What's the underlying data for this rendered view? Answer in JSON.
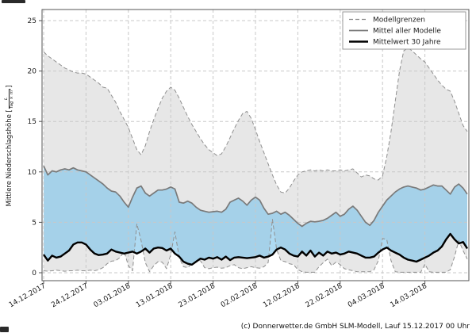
{
  "footer": "(c) Donnerwetter.de GmbH SLM-Modell, Lauf 15.12.2017 00 Uhr",
  "y_axis": {
    "label_prefix": "Mittlere Niederschlagshöhe [",
    "fraction_numerator": "L",
    "fraction_denominator": "Tag × m²",
    "label_suffix": "]",
    "ticks": [
      0,
      5,
      10,
      15,
      20,
      25
    ]
  },
  "x_axis": {
    "tick_labels": [
      "14.12.2017",
      "24.12.2017",
      "03.01.2018",
      "13.01.2018",
      "23.01.2018",
      "02.02.2018",
      "12.02.2018",
      "22.02.2018",
      "04.03.2018",
      "14.03.2018"
    ]
  },
  "legend": {
    "items": [
      {
        "label": "Modellgrenzen",
        "style": "dashed-gray"
      },
      {
        "label": "Mittel aller Modelle",
        "style": "solid-gray"
      },
      {
        "label": "Mittelwert 30 Jahre",
        "style": "solid-black"
      }
    ]
  },
  "colors": {
    "band_gray": "#e7e7e7",
    "band_blue": "rgba(125,196,234,0.62)",
    "bound_line": "#8f8f8f",
    "mean_models_line": "#7a7a7a",
    "mean_30y_line": "#000000",
    "grid": "#c8c8c8",
    "spine": "#555555"
  },
  "chart_data": {
    "type": "line",
    "title": "",
    "xlabel": "",
    "ylabel": "Mittlere Niederschlagshöhe [L/(Tag × m²)]",
    "x_unit": "days since 14.12.2017",
    "x_range_days": [
      0,
      100
    ],
    "x_tick_days": [
      0,
      10,
      20,
      30,
      40,
      50,
      60,
      70,
      80,
      90
    ],
    "ylim": [
      -0.8,
      26.1
    ],
    "grid": true,
    "legend_position": "top-right",
    "series": [
      {
        "name": "Modellgrenze oben (Modellgrenzen)",
        "values": [
          21.9,
          21.5,
          21.2,
          20.9,
          20.6,
          20.3,
          20.1,
          19.9,
          19.8,
          19.8,
          19.7,
          19.4,
          19.1,
          18.8,
          18.4,
          18.3,
          17.6,
          16.9,
          16.0,
          15.2,
          14.4,
          13.3,
          12.2,
          11.7,
          12.6,
          14.0,
          15.2,
          16.3,
          17.3,
          18.0,
          18.4,
          18.1,
          17.3,
          16.4,
          15.5,
          14.7,
          14.0,
          13.3,
          12.7,
          12.2,
          11.9,
          11.6,
          11.8,
          12.5,
          13.4,
          14.3,
          15.1,
          15.8,
          16.0,
          15.3,
          14.2,
          13.0,
          11.9,
          10.8,
          9.7,
          8.7,
          8.0,
          7.9,
          8.4,
          9.1,
          9.7,
          10.0,
          10.1,
          10.2,
          10.1,
          10.2,
          10.1,
          10.2,
          10.1,
          10.1,
          10.2,
          10.1,
          10.2,
          10.3,
          9.9,
          9.5,
          9.7,
          9.6,
          9.3,
          9.2,
          9.6,
          11.5,
          14.0,
          17.0,
          20.0,
          22.0,
          22.3,
          22.0,
          21.6,
          21.2,
          20.9,
          20.3,
          19.7,
          19.1,
          18.6,
          18.2,
          18.0,
          17.0,
          15.8,
          14.6,
          14.0
        ]
      },
      {
        "name": "Modellgrenze unten (Modellgrenzen)",
        "values": [
          0.2,
          0.15,
          0.2,
          0.25,
          0.2,
          0.15,
          0.2,
          0.2,
          0.25,
          0.2,
          0.2,
          0.25,
          0.2,
          0.3,
          0.5,
          0.9,
          1.15,
          1.2,
          1.5,
          2.1,
          0.7,
          0.2,
          4.85,
          3.2,
          1.0,
          0.1,
          0.7,
          1.1,
          1.05,
          0.4,
          1.8,
          4.05,
          1.5,
          0.6,
          0.5,
          0.9,
          1.1,
          1.2,
          0.5,
          0.4,
          0.5,
          0.55,
          0.45,
          0.5,
          0.7,
          0.8,
          0.5,
          0.4,
          0.5,
          0.6,
          0.5,
          0.45,
          0.6,
          1.0,
          5.3,
          2.3,
          1.2,
          1.1,
          0.9,
          0.8,
          0.3,
          0.1,
          0.05,
          0.05,
          0.05,
          0.6,
          1.0,
          1.35,
          0.7,
          1.05,
          0.8,
          0.4,
          0.3,
          0.2,
          0.1,
          0.1,
          0.1,
          0.1,
          0.3,
          1.2,
          3.4,
          3.3,
          1.2,
          0.1,
          0.05,
          0.05,
          0.05,
          0.05,
          0.05,
          0.05,
          0.85,
          0.1,
          0.05,
          0.05,
          0.05,
          0.05,
          0.3,
          1.6,
          3.2,
          2.2,
          1.35
        ]
      },
      {
        "name": "Mittel aller Modelle",
        "values": [
          10.6,
          9.7,
          10.1,
          10.0,
          10.2,
          10.3,
          10.2,
          10.4,
          10.2,
          10.1,
          10.0,
          9.7,
          9.4,
          9.1,
          8.8,
          8.4,
          8.1,
          8.0,
          7.6,
          7.0,
          6.5,
          7.5,
          8.4,
          8.6,
          7.9,
          7.6,
          7.9,
          8.2,
          8.2,
          8.3,
          8.5,
          8.3,
          7.0,
          6.9,
          7.1,
          6.9,
          6.5,
          6.2,
          6.1,
          6.0,
          6.05,
          6.1,
          6.0,
          6.3,
          7.0,
          7.2,
          7.4,
          7.1,
          6.7,
          7.2,
          7.5,
          7.2,
          6.4,
          5.8,
          5.9,
          6.1,
          5.8,
          6.0,
          5.7,
          5.3,
          4.9,
          4.6,
          4.9,
          5.1,
          5.05,
          5.1,
          5.2,
          5.4,
          5.7,
          6.0,
          5.6,
          5.8,
          6.3,
          6.6,
          6.2,
          5.6,
          5.0,
          4.7,
          5.2,
          6.0,
          6.6,
          7.2,
          7.6,
          8.0,
          8.3,
          8.5,
          8.6,
          8.5,
          8.4,
          8.2,
          8.3,
          8.5,
          8.7,
          8.6,
          8.6,
          8.2,
          7.8,
          8.5,
          8.8,
          8.4,
          7.8
        ]
      },
      {
        "name": "Mittelwert 30 Jahre",
        "values": [
          1.8,
          1.2,
          1.7,
          1.5,
          1.6,
          1.9,
          2.2,
          2.8,
          3.0,
          3.0,
          2.8,
          2.3,
          1.9,
          1.75,
          1.8,
          1.9,
          2.3,
          2.1,
          2.0,
          1.9,
          2.0,
          2.1,
          1.9,
          2.1,
          2.4,
          2.0,
          2.4,
          2.5,
          2.45,
          2.2,
          2.4,
          1.9,
          1.6,
          1.1,
          0.9,
          0.8,
          1.1,
          1.4,
          1.3,
          1.5,
          1.4,
          1.55,
          1.3,
          1.6,
          1.25,
          1.5,
          1.55,
          1.5,
          1.45,
          1.5,
          1.55,
          1.7,
          1.5,
          1.6,
          1.8,
          2.3,
          2.5,
          2.3,
          1.9,
          1.7,
          1.6,
          2.1,
          1.7,
          2.2,
          1.6,
          2.0,
          1.7,
          2.1,
          1.9,
          2.0,
          1.8,
          1.9,
          2.1,
          2.0,
          1.9,
          1.7,
          1.5,
          1.5,
          1.6,
          2.0,
          2.3,
          2.5,
          2.2,
          2.0,
          1.8,
          1.5,
          1.3,
          1.2,
          1.1,
          1.3,
          1.5,
          1.7,
          2.0,
          2.2,
          2.6,
          3.3,
          3.85,
          3.3,
          2.9,
          3.05,
          2.4
        ]
      }
    ]
  }
}
